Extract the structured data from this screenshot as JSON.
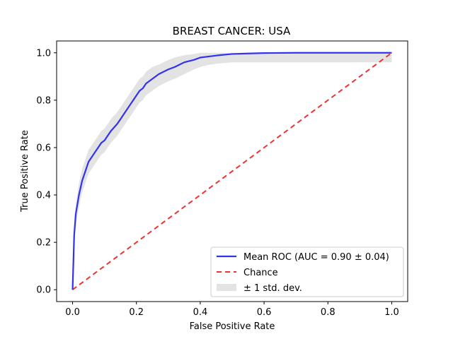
{
  "chart_data": {
    "type": "line",
    "title": "BREAST CANCER: USA",
    "xlabel": "False Positive Rate",
    "ylabel": "True Positive Rate",
    "xlim": [
      -0.05,
      1.05
    ],
    "ylim": [
      -0.05,
      1.05
    ],
    "xticks": [
      "0.0",
      "0.2",
      "0.4",
      "0.6",
      "0.8",
      "1.0"
    ],
    "yticks": [
      "0.0",
      "0.2",
      "0.4",
      "0.6",
      "0.8",
      "1.0"
    ],
    "grid": false,
    "legend_position": "lower-right",
    "series": [
      {
        "name": "Mean ROC (AUC = 0.90 ± 0.04)",
        "color": "#3333ee",
        "x": [
          0.0,
          0.005,
          0.01,
          0.02,
          0.03,
          0.04,
          0.05,
          0.06,
          0.07,
          0.08,
          0.09,
          0.1,
          0.12,
          0.14,
          0.15,
          0.16,
          0.17,
          0.18,
          0.19,
          0.2,
          0.21,
          0.22,
          0.23,
          0.24,
          0.25,
          0.27,
          0.3,
          0.32,
          0.35,
          0.38,
          0.4,
          0.43,
          0.46,
          0.5,
          0.55,
          0.6,
          0.7,
          0.8,
          0.9,
          1.0
        ],
        "y": [
          0.0,
          0.23,
          0.32,
          0.4,
          0.46,
          0.5,
          0.54,
          0.56,
          0.58,
          0.6,
          0.62,
          0.63,
          0.67,
          0.7,
          0.72,
          0.74,
          0.76,
          0.78,
          0.8,
          0.82,
          0.84,
          0.85,
          0.87,
          0.88,
          0.89,
          0.91,
          0.93,
          0.94,
          0.96,
          0.97,
          0.98,
          0.985,
          0.99,
          0.995,
          0.997,
          0.999,
          1.0,
          1.0,
          1.0,
          1.0
        ]
      },
      {
        "name": "Chance",
        "color": "#ee3333",
        "style": "dashed",
        "x": [
          0.0,
          1.0
        ],
        "y": [
          0.0,
          1.0
        ]
      }
    ],
    "band": {
      "name": "± 1 std. dev.",
      "color": "#cccccc",
      "x": [
        0.0,
        0.005,
        0.01,
        0.02,
        0.03,
        0.04,
        0.05,
        0.06,
        0.07,
        0.08,
        0.09,
        0.1,
        0.12,
        0.14,
        0.15,
        0.16,
        0.17,
        0.18,
        0.19,
        0.2,
        0.21,
        0.22,
        0.23,
        0.24,
        0.25,
        0.27,
        0.3,
        0.32,
        0.35,
        0.38,
        0.4,
        0.43,
        0.46,
        0.5,
        0.55,
        0.6,
        0.7,
        0.8,
        0.9,
        1.0
      ],
      "upper": [
        0.0,
        0.26,
        0.36,
        0.45,
        0.51,
        0.55,
        0.59,
        0.61,
        0.63,
        0.65,
        0.67,
        0.68,
        0.72,
        0.75,
        0.77,
        0.79,
        0.81,
        0.83,
        0.85,
        0.87,
        0.89,
        0.9,
        0.92,
        0.93,
        0.94,
        0.95,
        0.97,
        0.98,
        0.99,
        0.995,
        1.0,
        1.0,
        1.0,
        1.0,
        1.0,
        1.0,
        1.0,
        1.0,
        1.0,
        1.0
      ],
      "lower": [
        0.0,
        0.2,
        0.27,
        0.35,
        0.41,
        0.45,
        0.49,
        0.51,
        0.53,
        0.55,
        0.57,
        0.58,
        0.62,
        0.65,
        0.67,
        0.69,
        0.71,
        0.73,
        0.75,
        0.77,
        0.79,
        0.8,
        0.82,
        0.83,
        0.84,
        0.86,
        0.88,
        0.89,
        0.91,
        0.93,
        0.94,
        0.95,
        0.955,
        0.96,
        0.96,
        0.96,
        0.96,
        0.96,
        0.96,
        0.96
      ]
    }
  }
}
